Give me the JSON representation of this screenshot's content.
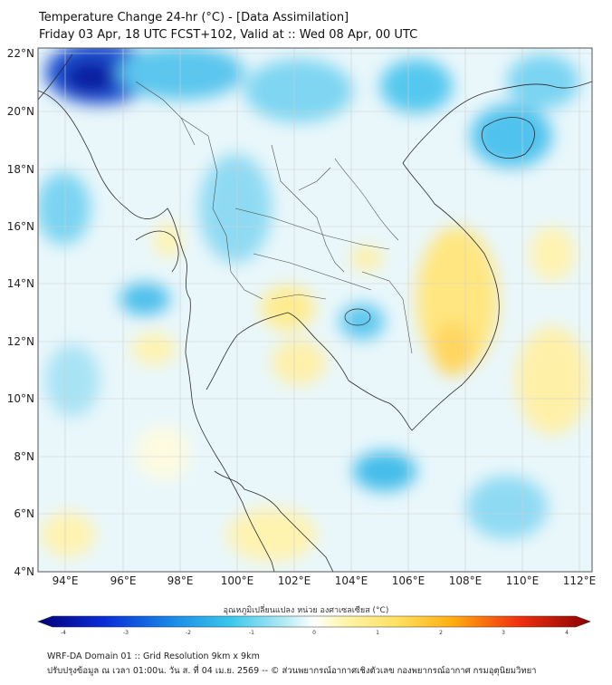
{
  "title": {
    "line1": "Temperature Change 24-hr (°C) - [Data Assimilation]",
    "line2": "Friday 03 Apr, 18 UTC FCST+102, Valid at :: Wed 08 Apr, 00 UTC"
  },
  "axes": {
    "lat_labels": [
      "22°N",
      "20°N",
      "18°N",
      "16°N",
      "14°N",
      "12°N",
      "10°N",
      "8°N",
      "6°N",
      "4°N"
    ],
    "lon_labels": [
      "94°E",
      "96°E",
      "98°E",
      "100°E",
      "102°E",
      "104°E",
      "106°E",
      "108°E",
      "110°E",
      "112°E"
    ]
  },
  "colorbar": {
    "label": "อุณหภูมิเปลี่ยนแปลง หน่วย องศาเซลเซียส (°C)",
    "ticks": [
      "-4",
      "-3",
      "-2",
      "-1",
      "0",
      "1",
      "2",
      "3",
      "4"
    ]
  },
  "footer": {
    "line1": "WRF-DA Domain 01 :: Grid Resolution 9km x 9km",
    "line2": "ปรับปรุงข้อมูล ณ เวลา 01:00น. วัน ส. ที่ 04 เม.ย. 2569 -- © ส่วนพยากรณ์อากาศเชิงตัวเลข กองพยากรณ์อากาศ กรมอุตุนิยมวิทยา"
  },
  "colors": {
    "frame": "#555555",
    "grid": "#cfcfcf",
    "coast": "#2a2a2a"
  }
}
